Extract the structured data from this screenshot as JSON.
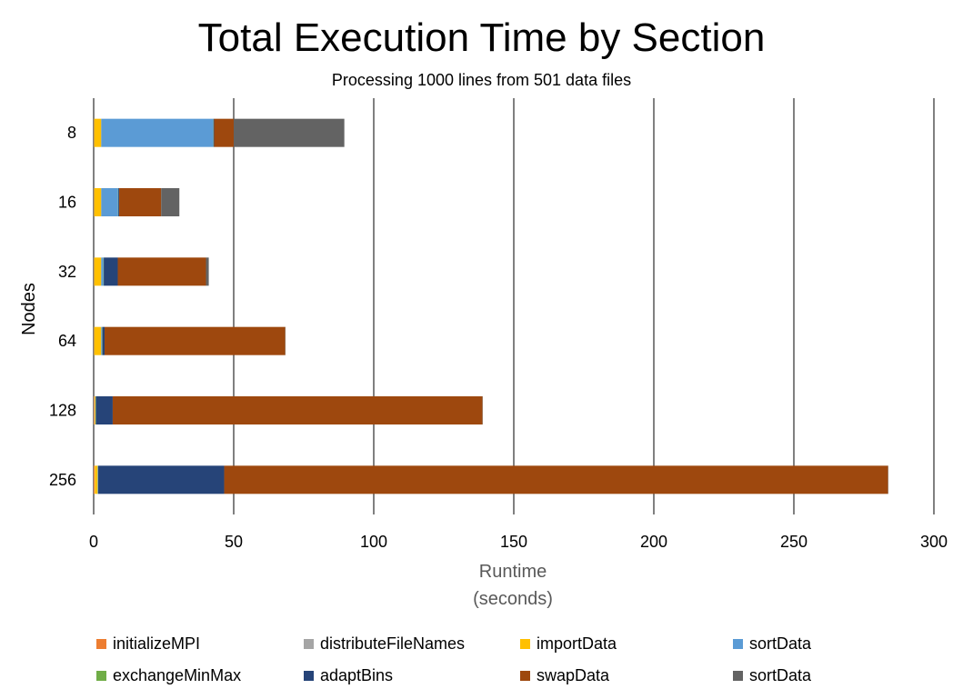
{
  "chart_data": {
    "type": "bar",
    "orientation": "horizontal",
    "stacked": true,
    "title": "Total Execution Time by Section",
    "subtitle": "Processing 1000 lines from 501 data files",
    "xlabel": "Runtime\n(seconds)",
    "ylabel": "Nodes",
    "xlim": [
      0,
      300
    ],
    "xticks": [
      0,
      50,
      100,
      150,
      200,
      250,
      300
    ],
    "grid": "vertical",
    "legend_position": "bottom",
    "categories": [
      "8",
      "16",
      "32",
      "64",
      "128",
      "256"
    ],
    "series": [
      {
        "name": "initializeMPI",
        "color": "#ED7D31",
        "values": [
          0.1,
          0.1,
          0.1,
          0.1,
          0.2,
          0.3
        ]
      },
      {
        "name": "distributeFileNames",
        "color": "#A5A5A5",
        "values": [
          0.1,
          0.1,
          0.1,
          0.1,
          0.1,
          0.1
        ]
      },
      {
        "name": "importData",
        "color": "#FFC000",
        "values": [
          2.5,
          2.5,
          2.5,
          2.5,
          0.3,
          1.0
        ]
      },
      {
        "name": "sortData",
        "color": "#5B9BD5",
        "values": [
          40,
          6,
          0.8,
          0.3,
          0.1,
          0.1
        ]
      },
      {
        "name": "exchangeMinMax",
        "color": "#70AD47",
        "values": [
          0.1,
          0.1,
          0.1,
          0.1,
          0.1,
          0.1
        ]
      },
      {
        "name": "adaptBins",
        "color": "#264478",
        "values": [
          0.2,
          0.3,
          5,
          0.8,
          6,
          45
        ]
      },
      {
        "name": "swapData",
        "color": "#9E480E",
        "values": [
          7,
          15,
          31.5,
          64.5,
          132,
          237
        ]
      },
      {
        "name": "sortData",
        "color": "#636363",
        "values": [
          39.5,
          6.5,
          1,
          0.1,
          0.1,
          0.1
        ]
      }
    ]
  }
}
